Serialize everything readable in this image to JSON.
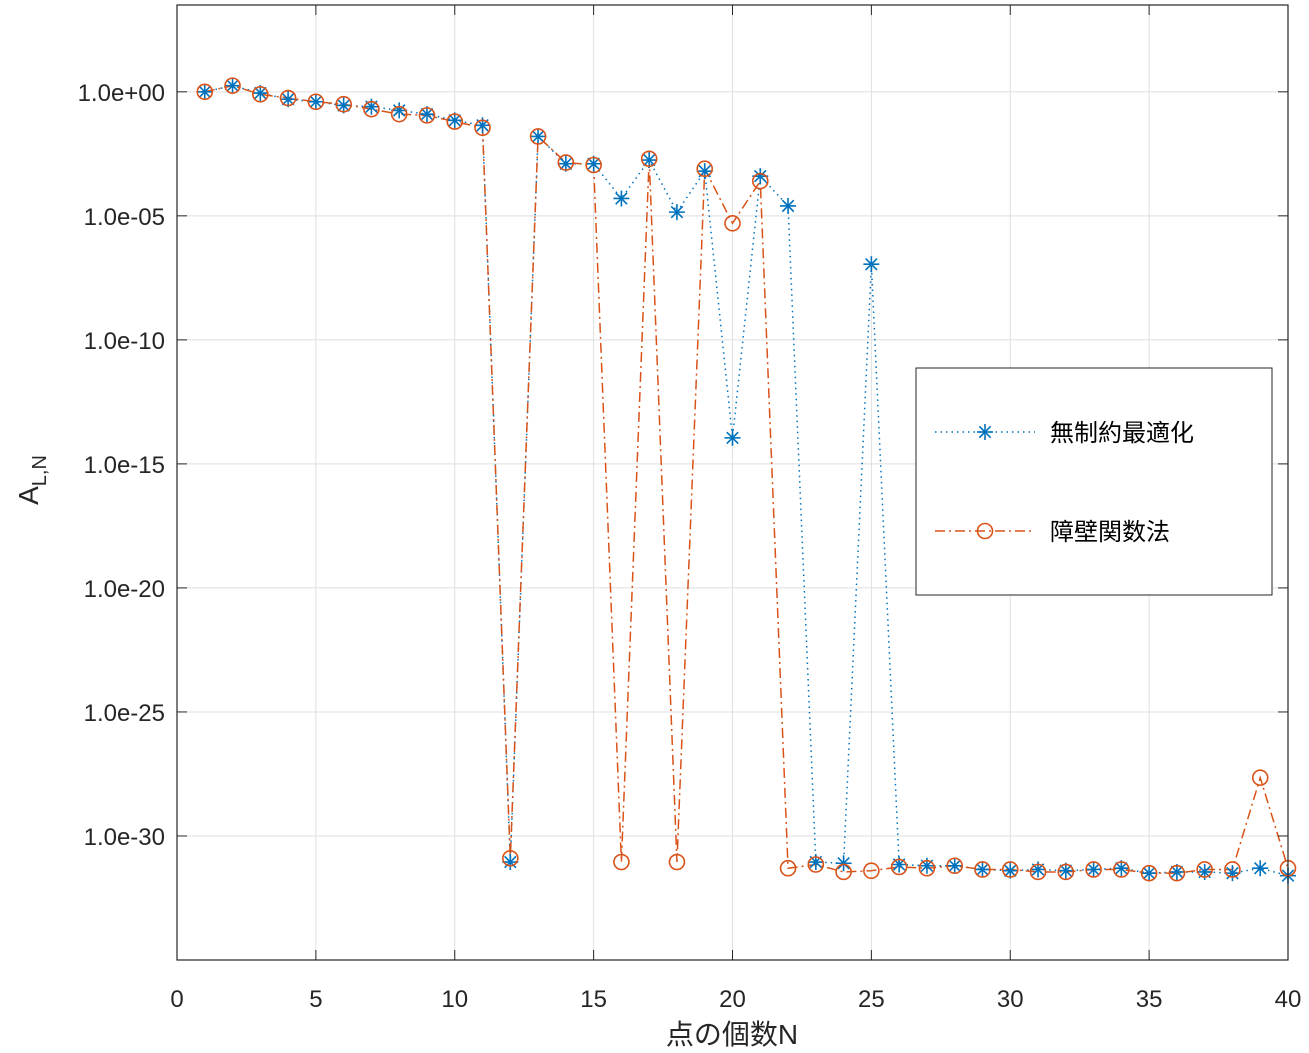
{
  "chart_data": {
    "type": "line",
    "xlabel": "点の個数N",
    "ylabel": "A",
    "ylabel_subscript": "L,N",
    "yscale": "log",
    "xlim": [
      0,
      40
    ],
    "ylim_exp": [
      -35,
      3.5
    ],
    "grid": true,
    "x_ticks": [
      0,
      5,
      10,
      15,
      20,
      25,
      30,
      35,
      40
    ],
    "y_ticks": [
      {
        "exp": 0,
        "label": "1.0e+00"
      },
      {
        "exp": -5,
        "label": "1.0e-05"
      },
      {
        "exp": -10,
        "label": "1.0e-10"
      },
      {
        "exp": -15,
        "label": "1.0e-15"
      },
      {
        "exp": -20,
        "label": "1.0e-20"
      },
      {
        "exp": -25,
        "label": "1.0e-25"
      },
      {
        "exp": -30,
        "label": "1.0e-30"
      }
    ],
    "legend_position": "right",
    "series": [
      {
        "name": "無制約最適化",
        "color": "#0072BD",
        "line_style": "dotted",
        "marker": "asterisk",
        "x": [
          1,
          2,
          3,
          4,
          5,
          6,
          7,
          8,
          9,
          10,
          11,
          12,
          13,
          14,
          15,
          16,
          17,
          18,
          19,
          20,
          21,
          22,
          23,
          24,
          25,
          26,
          27,
          28,
          29,
          30,
          31,
          32,
          33,
          34,
          35,
          36,
          37,
          38,
          39,
          40
        ],
        "log10_y": [
          0.0,
          0.25,
          -0.05,
          -0.3,
          -0.4,
          -0.55,
          -0.6,
          -0.75,
          -0.9,
          -1.15,
          -1.35,
          -31.05,
          -1.8,
          -2.9,
          -2.9,
          -4.3,
          -2.75,
          -4.85,
          -3.2,
          -13.95,
          -3.4,
          -4.6,
          -31.05,
          -31.1,
          -6.95,
          -31.15,
          -31.2,
          -31.2,
          -31.35,
          -31.4,
          -31.35,
          -31.4,
          -31.35,
          -31.3,
          -31.5,
          -31.45,
          -31.45,
          -31.5,
          -31.3,
          -31.6
        ]
      },
      {
        "name": "障壁関数法",
        "color": "#D95319",
        "line_style": "dashdot",
        "marker": "circle",
        "x": [
          1,
          2,
          3,
          4,
          5,
          6,
          7,
          8,
          9,
          10,
          11,
          12,
          13,
          14,
          15,
          16,
          17,
          18,
          19,
          20,
          21,
          22,
          23,
          24,
          25,
          26,
          27,
          28,
          29,
          30,
          31,
          32,
          33,
          34,
          35,
          36,
          37,
          38,
          39,
          40
        ],
        "log10_y": [
          0.0,
          0.25,
          -0.1,
          -0.25,
          -0.4,
          -0.5,
          -0.7,
          -0.9,
          -0.95,
          -1.2,
          -1.45,
          -30.9,
          -1.8,
          -2.85,
          -2.95,
          -31.05,
          -2.7,
          -31.05,
          -3.1,
          -5.3,
          -3.6,
          -31.3,
          -31.15,
          -31.45,
          -31.4,
          -31.25,
          -31.3,
          -31.2,
          -31.35,
          -31.35,
          -31.45,
          -31.45,
          -31.35,
          -31.35,
          -31.5,
          -31.5,
          -31.35,
          -31.35,
          -27.65,
          -31.3
        ]
      }
    ]
  }
}
